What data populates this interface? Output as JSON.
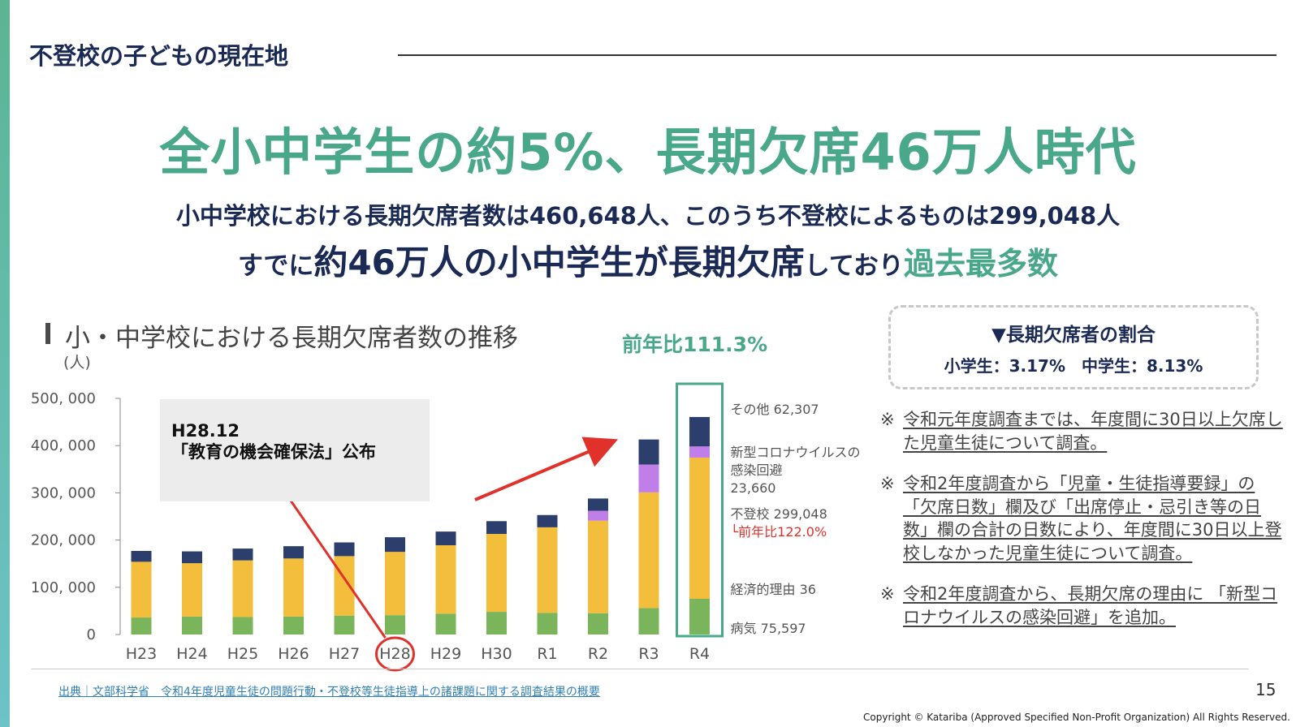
{
  "header": {
    "section_title": "不登校の子どもの現在地",
    "headline": "全小中学生の約5%、長期欠席46万人時代",
    "sub1": "小中学校における長期欠席者数は460,648人、このうち不登校によるものは299,048人",
    "sub2_part1": "すでに",
    "sub2_part2": "約46万人の小中学生が長期欠席",
    "sub2_part3": "しており",
    "sub2_part4": "過去最多数"
  },
  "chart_header": {
    "title": "小・中学校における長期欠席者数の推移",
    "unit": "(人)",
    "yoy_label": "前年比111.3%"
  },
  "annotation_box": {
    "line1": "H28.12",
    "line2": "「教育の機会確保法」公布"
  },
  "ratio_box": {
    "title": "▼長期欠席者の割合",
    "values": "小学生：3.17%　中学生：8.13%"
  },
  "notes": [
    {
      "mark": "※",
      "text": "令和元年度調査までは、年度間に30日以上欠席した児童生徒について調査。"
    },
    {
      "mark": "※",
      "text": "令和2年度調査から「児童・生徒指導要録」の「欠席日数」欄及び「出席停止・忌引き等の日数」欄の合計の日数により、年度間に30日以上登校しなかった児童生徒について調査。"
    },
    {
      "mark": "※",
      "text": "令和2年度調査から、長期欠席の理由に 「新型コロナウイルスの感染回避」を追加。"
    }
  ],
  "footer": {
    "source": "出典｜文部科学省　令和4年度児童生徒の問題行動・不登校等生徒指導上の諸課題に関する調査結果の概要",
    "page": "15",
    "copyright": "Copyright © Katariba (Approved Specified Non-Profit Organization) All Rights Reserved."
  },
  "colors": {
    "accent_green": "#4aa88a",
    "navy": "#1a2a55",
    "illness": "#7ab55c",
    "truancy": "#f2be3c",
    "covid": "#c07ee8",
    "other": "#2c3e6b",
    "highlight_red": "#e0322b"
  },
  "chart_data": {
    "type": "bar",
    "stacked": true,
    "categories": [
      "H23",
      "H24",
      "H25",
      "H26",
      "H27",
      "H28",
      "H29",
      "H30",
      "R1",
      "R2",
      "R3",
      "R4"
    ],
    "ylim": [
      0,
      500000
    ],
    "yticks": [
      0,
      100000,
      200000,
      300000,
      400000,
      500000
    ],
    "ytick_labels": [
      "0",
      "100, 000",
      "200, 000",
      "300, 000",
      "400, 000",
      "500, 000"
    ],
    "series": [
      {
        "name": "病気",
        "color": "#7ab55c",
        "values": [
          36000,
          38000,
          37000,
          38000,
          40000,
          41000,
          44000,
          48000,
          46000,
          45000,
          56000,
          75597
        ]
      },
      {
        "name": "不登校",
        "color": "#f2be3c",
        "values": [
          118000,
          113000,
          120000,
          123000,
          126000,
          134000,
          145000,
          165000,
          181000,
          196000,
          245000,
          299048
        ]
      },
      {
        "name": "新型コロナウイルスの感染回避",
        "color": "#c07ee8",
        "values": [
          0,
          0,
          0,
          0,
          0,
          0,
          0,
          0,
          0,
          21000,
          59000,
          23660
        ]
      },
      {
        "name": "その他",
        "color": "#2c3e6b",
        "values": [
          23000,
          25000,
          25000,
          26000,
          29000,
          31000,
          29000,
          27000,
          26000,
          26000,
          53000,
          62307
        ]
      }
    ],
    "right_labels": [
      {
        "series": "その他",
        "text": "その他 62,307"
      },
      {
        "series": "新型コロナウイルスの感染回避",
        "text": "新型コロナウイルスの感染回避 23,660",
        "lines": [
          "新型コロナウイルスの",
          "感染回避",
          "23,660"
        ]
      },
      {
        "series": "不登校",
        "text": "不登校 299,048"
      },
      {
        "series": "経済的理由",
        "text": "経済的理由 36"
      },
      {
        "series": "病気",
        "text": "病気 75,597"
      }
    ],
    "truancy_yoy": "前年比122.0%",
    "highlight_category": "H28",
    "highlight_box_category": "R4"
  }
}
